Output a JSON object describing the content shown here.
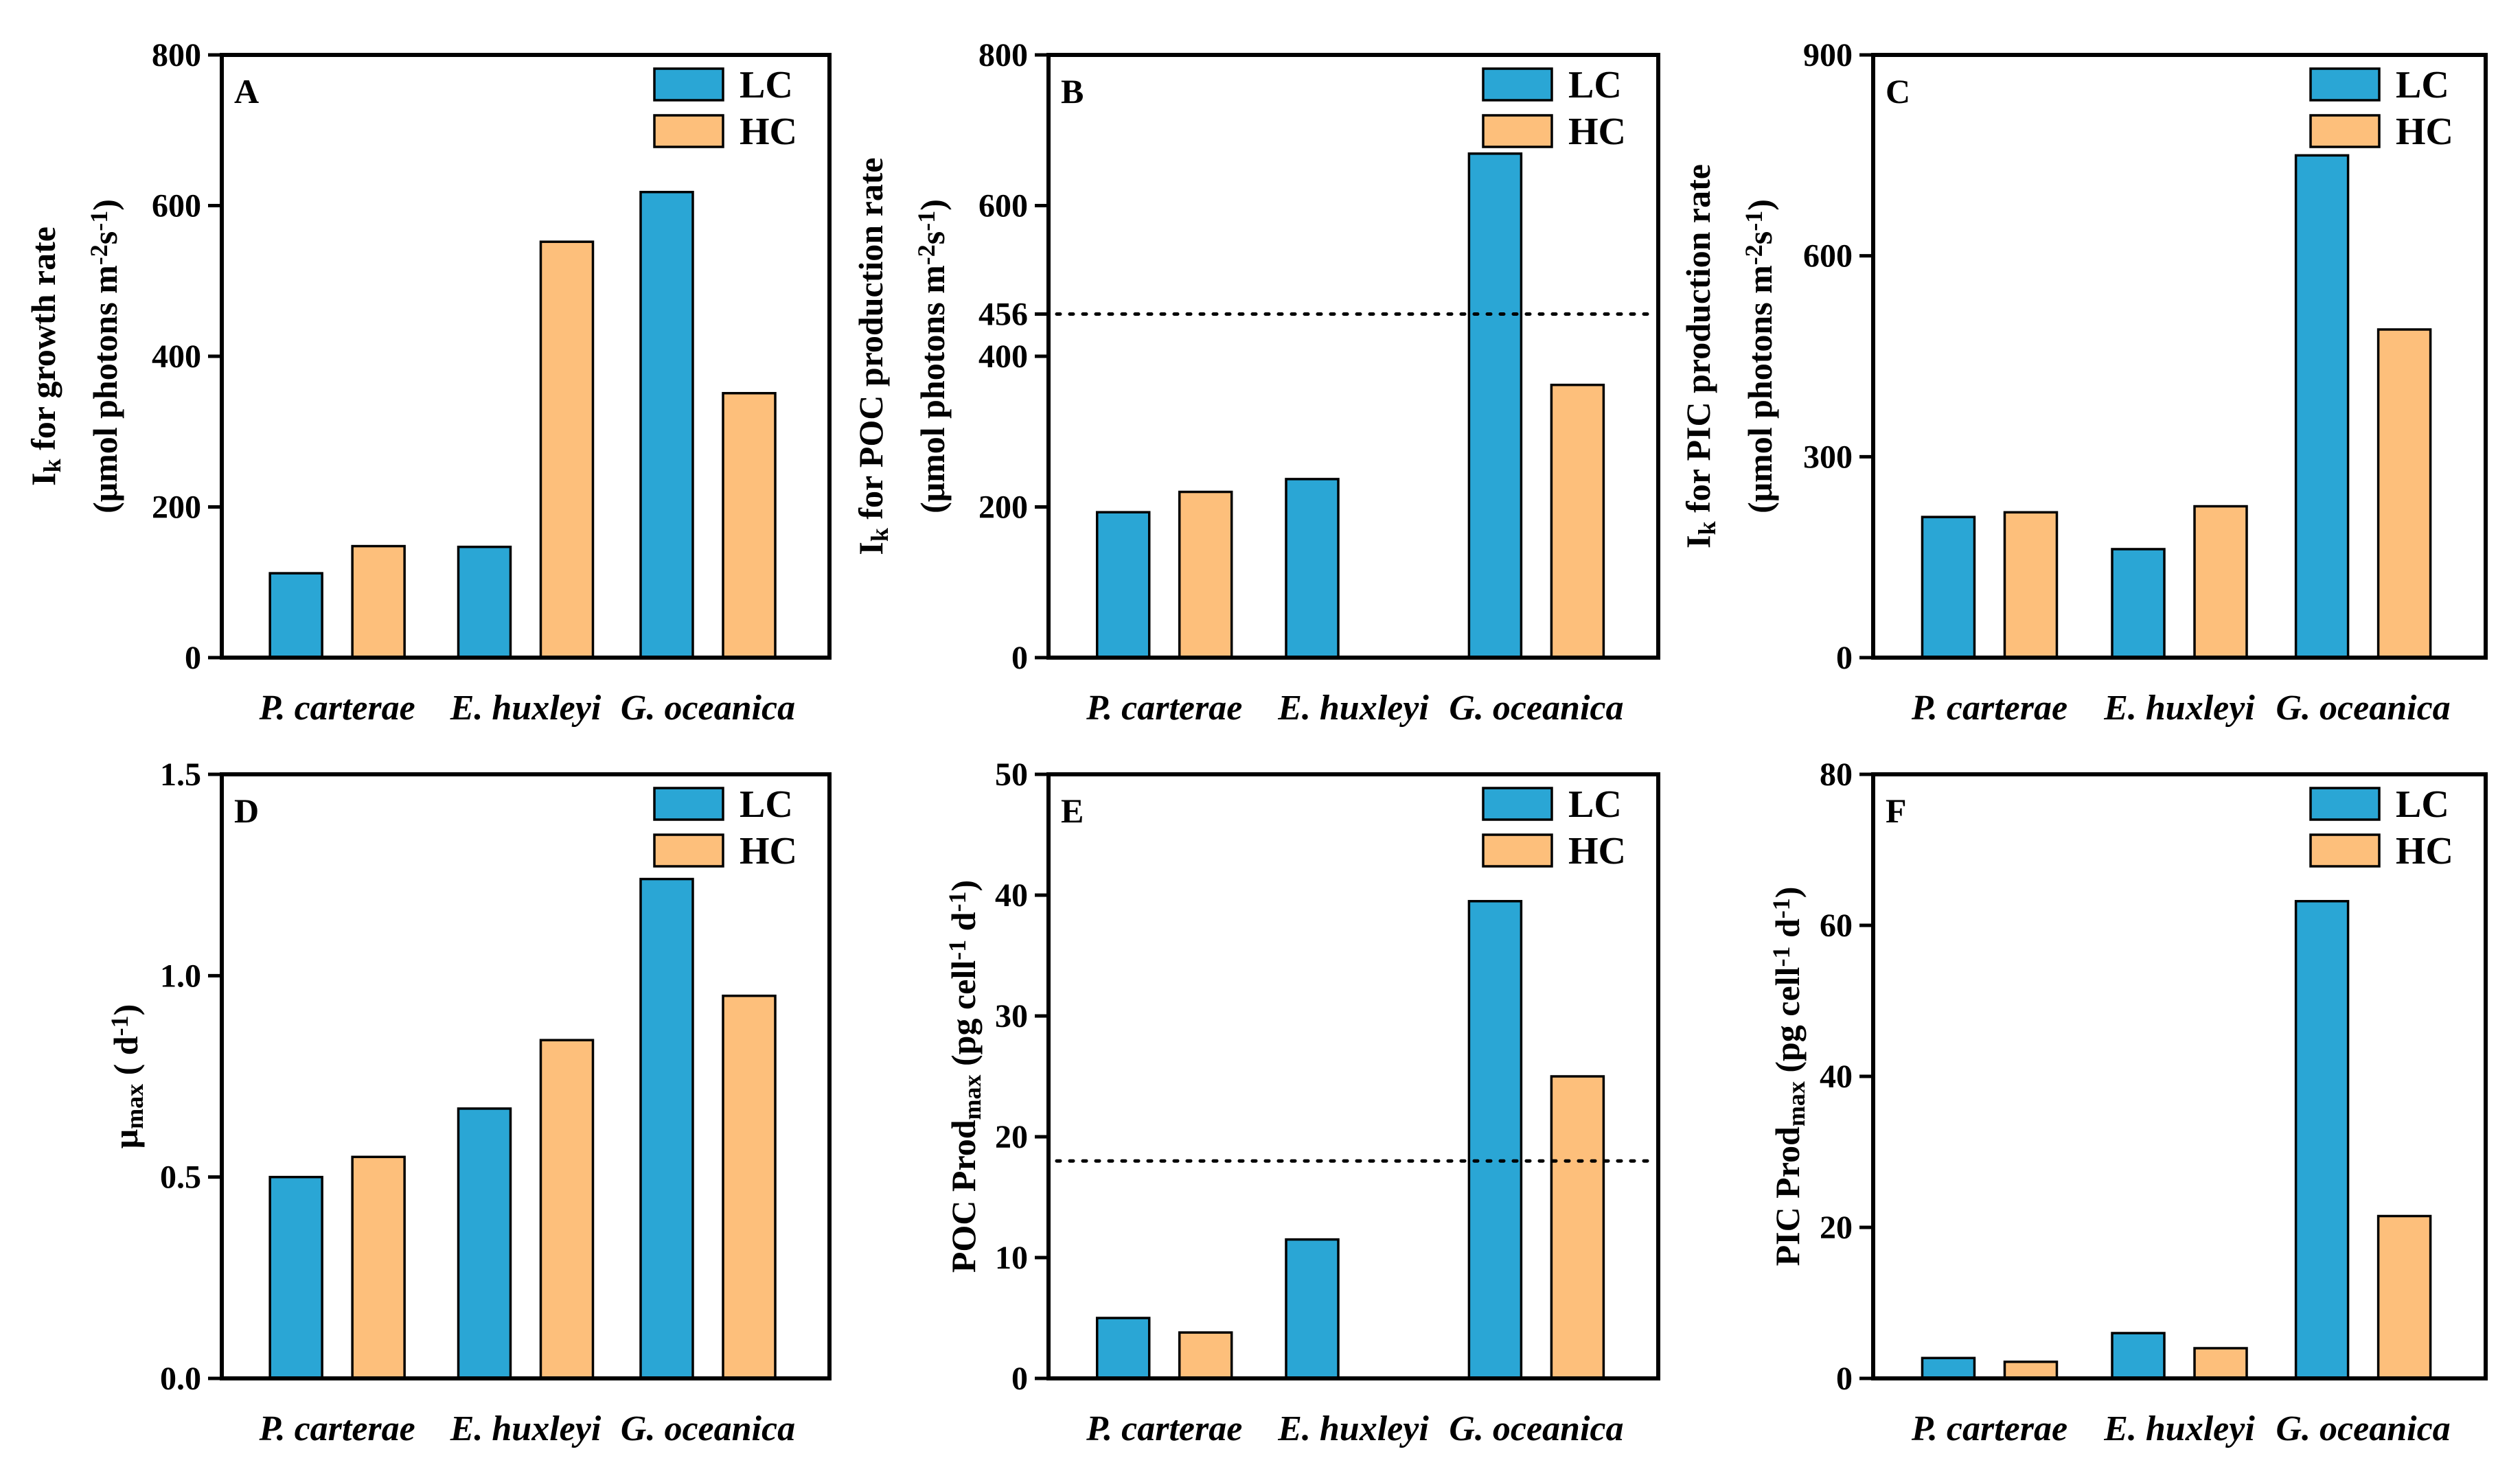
{
  "colors": {
    "LC": "#2aa6d5",
    "HC": "#fdbf7b"
  },
  "chart_data": [
    {
      "id": "A",
      "type": "bar",
      "letter": "A",
      "categories": [
        "P. carterae",
        "E. huxleyi",
        "G. oceanica"
      ],
      "series": [
        {
          "name": "LC",
          "values": [
            112,
            147,
            618
          ]
        },
        {
          "name": "HC",
          "values": [
            148,
            552,
            351
          ]
        }
      ],
      "ylim": [
        0,
        800
      ],
      "yticks": [
        0,
        200,
        400,
        600,
        800
      ],
      "ylabel_main": "I",
      "ylabel_sub": "k",
      "ylabel_rest": " for growth rate",
      "ylabel_line2": "(μmol photons m",
      "ylabel_line2_sup1": "-2",
      "ylabel_line2_mid": "s",
      "ylabel_line2_sup2": "-1",
      "ylabel_line2_end": ")",
      "legend": [
        "LC",
        "HC"
      ],
      "refline": null
    },
    {
      "id": "B",
      "type": "bar",
      "letter": "B",
      "categories": [
        "P. carterae",
        "E. huxleyi",
        "G. oceanica"
      ],
      "series": [
        {
          "name": "LC",
          "values": [
            193,
            237,
            669
          ]
        },
        {
          "name": "HC",
          "values": [
            220,
            null,
            362
          ]
        }
      ],
      "ylim": [
        0,
        800
      ],
      "yticks": [
        0,
        200,
        400,
        600,
        800
      ],
      "extra_tick": 456,
      "ylabel_main": "I",
      "ylabel_sub": "k",
      "ylabel_rest": " for POC production rate",
      "ylabel_line2": "(μmol photons m",
      "ylabel_line2_sup1": "-2",
      "ylabel_line2_mid": "s",
      "ylabel_line2_sup2": "-1",
      "ylabel_line2_end": ")",
      "legend": [
        "LC",
        "HC"
      ],
      "refline": 456
    },
    {
      "id": "C",
      "type": "bar",
      "letter": "C",
      "categories": [
        "P. carterae",
        "E. huxleyi",
        "G. oceanica"
      ],
      "series": [
        {
          "name": "LC",
          "values": [
            210,
            162,
            750
          ]
        },
        {
          "name": "HC",
          "values": [
            217,
            226,
            490
          ]
        }
      ],
      "ylim": [
        0,
        900
      ],
      "yticks": [
        0,
        300,
        600,
        900
      ],
      "ylabel_main": "I",
      "ylabel_sub": "k",
      "ylabel_rest": " for PIC production rate",
      "ylabel_line2": "(μmol photons m",
      "ylabel_line2_sup1": "-2",
      "ylabel_line2_mid": "s",
      "ylabel_line2_sup2": "-1",
      "ylabel_line2_end": ")",
      "legend": [
        "LC",
        "HC"
      ],
      "refline": null
    },
    {
      "id": "D",
      "type": "bar",
      "letter": "D",
      "categories": [
        "P. carterae",
        "E. huxleyi",
        "G. oceanica"
      ],
      "series": [
        {
          "name": "LC",
          "values": [
            0.5,
            0.67,
            1.24
          ]
        },
        {
          "name": "HC",
          "values": [
            0.55,
            0.84,
            0.95
          ]
        }
      ],
      "ylim": [
        0,
        1.5
      ],
      "yticks": [
        0.0,
        0.5,
        1.0,
        1.5
      ],
      "ytick_decimals": 1,
      "ylabel_main": "μ",
      "ylabel_sub": "max",
      "ylabel_rest": " ( d",
      "ylabel_sup": "-1",
      "ylabel_end": ")",
      "legend": [
        "LC",
        "HC"
      ],
      "refline": null
    },
    {
      "id": "E",
      "type": "bar",
      "letter": "E",
      "categories": [
        "P. carterae",
        "E. huxleyi",
        "G. oceanica"
      ],
      "series": [
        {
          "name": "LC",
          "values": [
            5.0,
            11.5,
            39.5
          ]
        },
        {
          "name": "HC",
          "values": [
            3.8,
            null,
            25.0
          ]
        }
      ],
      "ylim": [
        0,
        50
      ],
      "yticks": [
        0,
        10,
        20,
        30,
        40,
        50
      ],
      "ylabel_main": "POC Prod",
      "ylabel_sub": "max",
      "ylabel_rest": " (pg cell",
      "ylabel_sup": "-1",
      "ylabel_mid": " d",
      "ylabel_sup2": "-1",
      "ylabel_end": ")",
      "legend": [
        "LC",
        "HC"
      ],
      "refline": 18
    },
    {
      "id": "F",
      "type": "bar",
      "letter": "F",
      "categories": [
        "P. carterae",
        "E. huxleyi",
        "G. oceanica"
      ],
      "series": [
        {
          "name": "LC",
          "values": [
            2.7,
            6.0,
            63.2
          ]
        },
        {
          "name": "HC",
          "values": [
            2.2,
            4.0,
            21.5
          ]
        }
      ],
      "ylim": [
        0,
        80
      ],
      "yticks": [
        0,
        20,
        40,
        60,
        80
      ],
      "ylabel_main": "PIC Prod",
      "ylabel_sub": "max",
      "ylabel_rest": " (pg cell",
      "ylabel_sup": "-1",
      "ylabel_mid": " d",
      "ylabel_sup2": "-1",
      "ylabel_end": ")",
      "legend": [
        "LC",
        "HC"
      ],
      "refline": null
    }
  ]
}
